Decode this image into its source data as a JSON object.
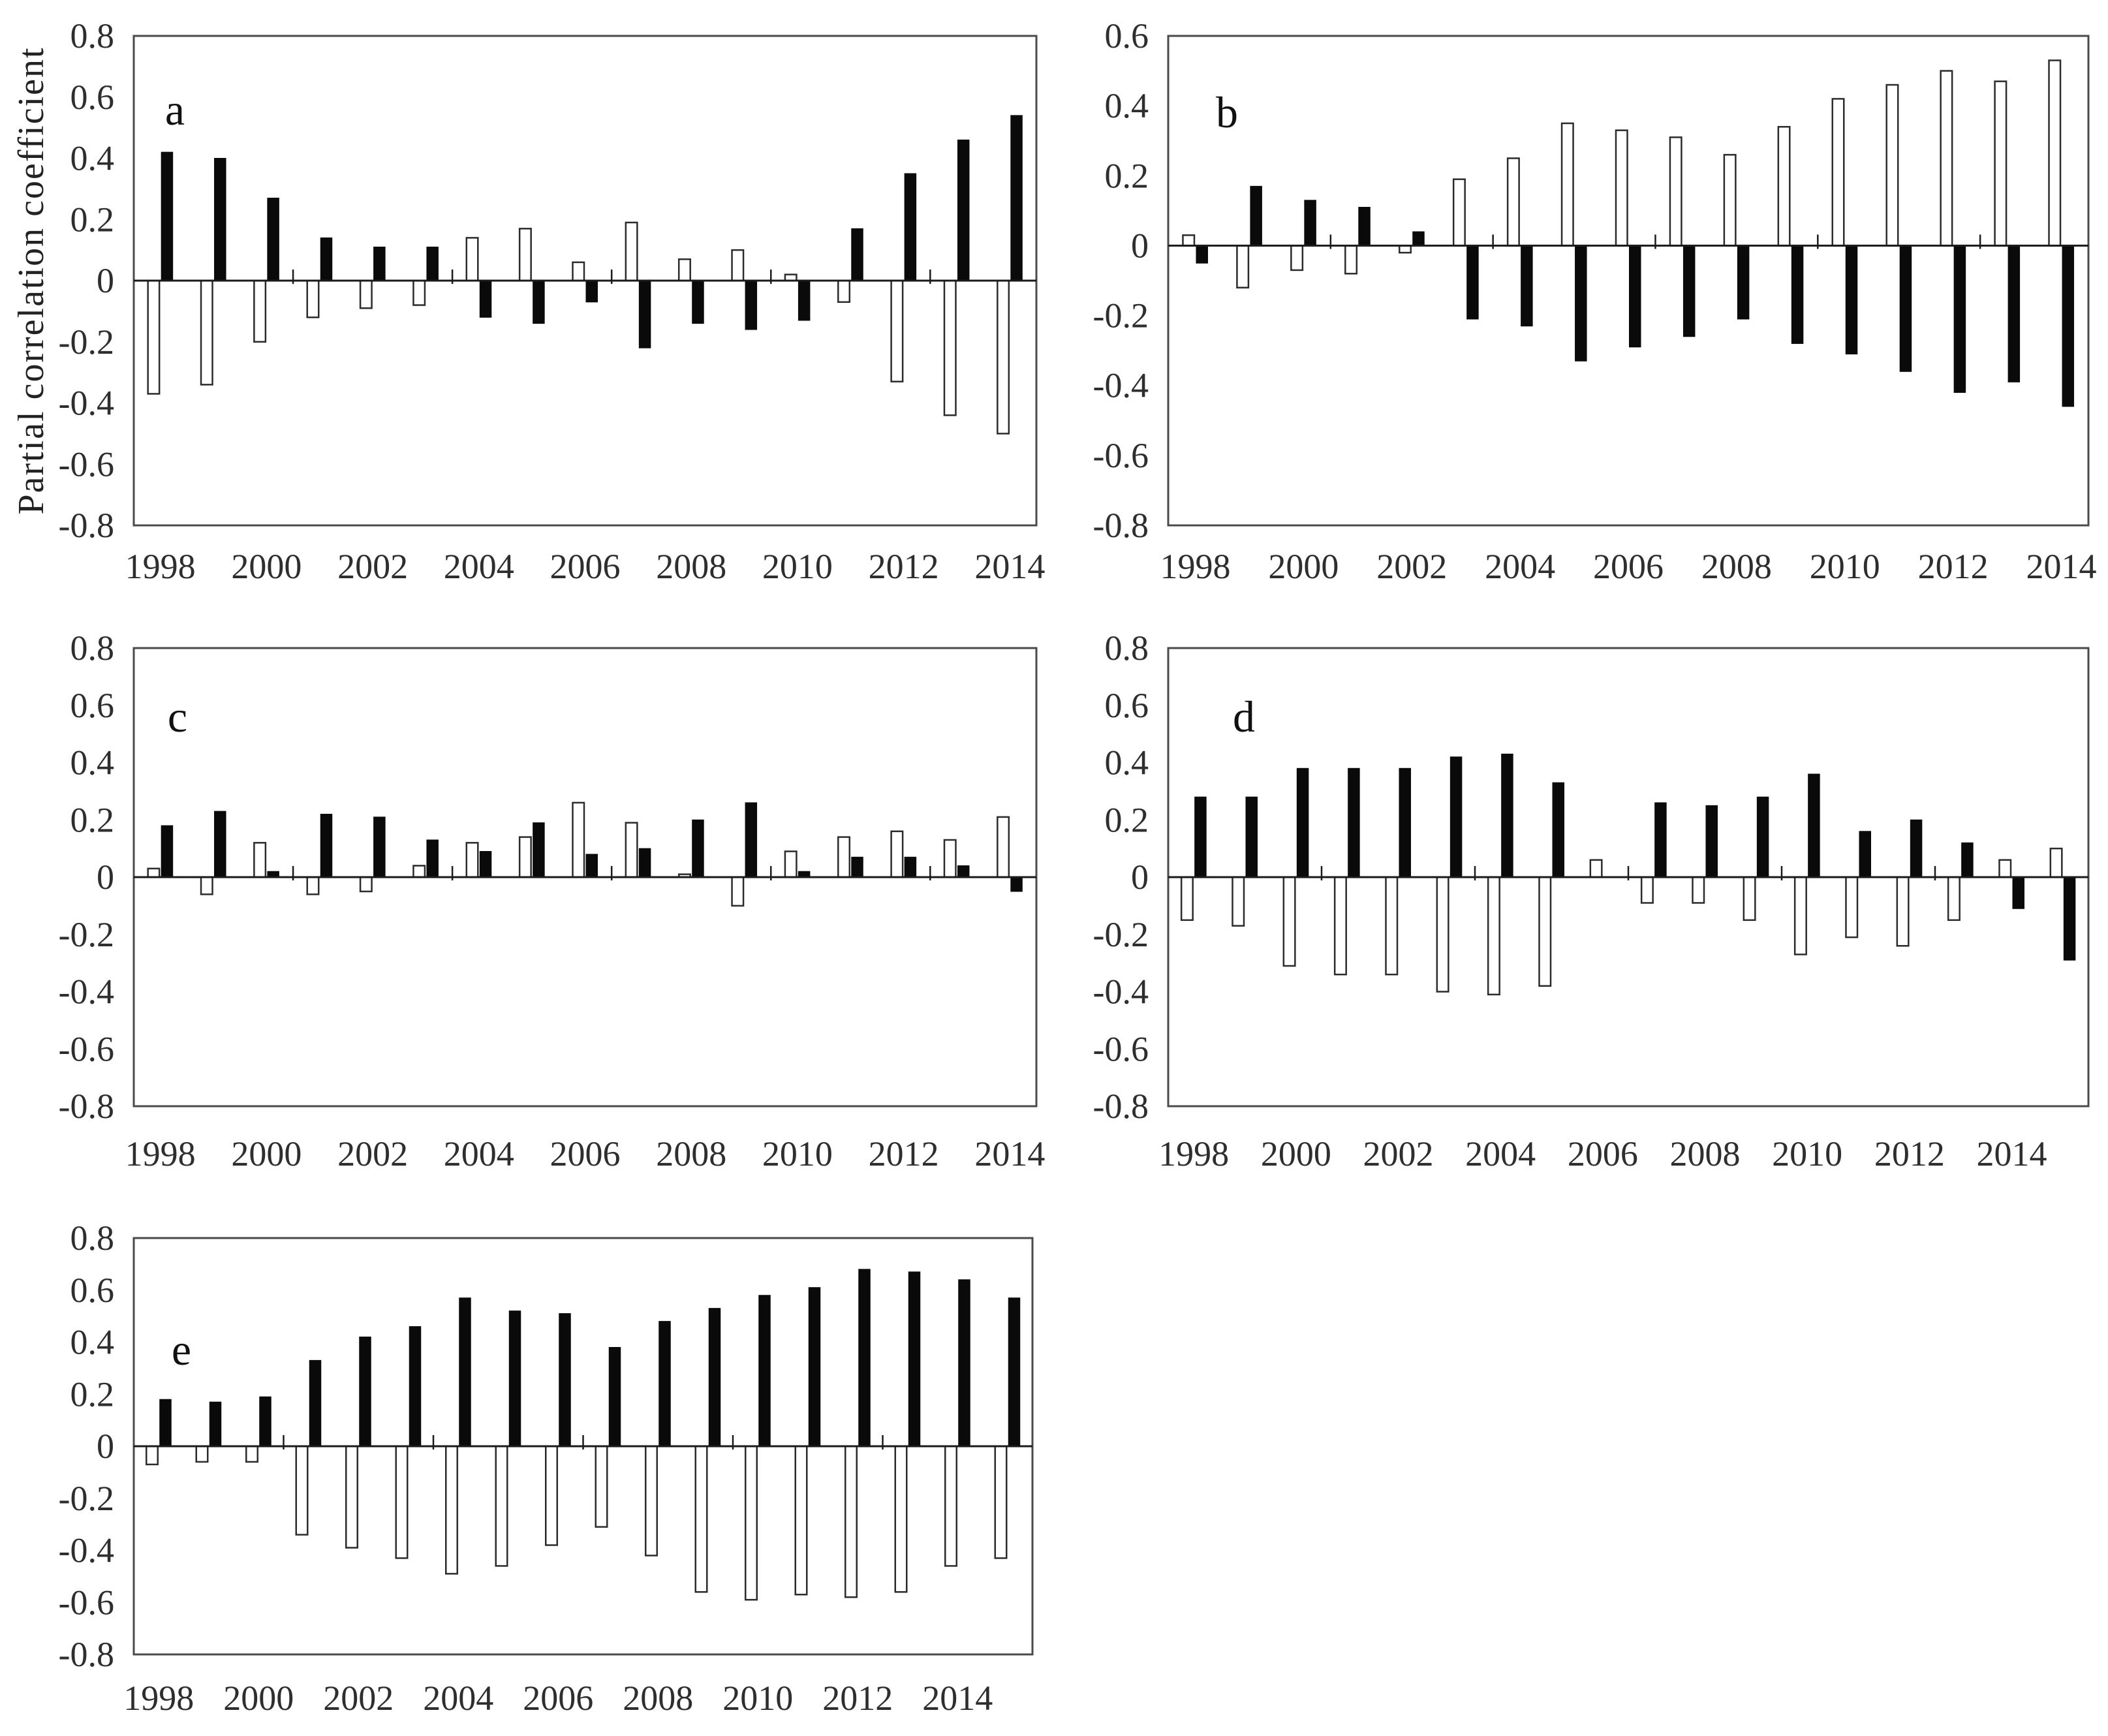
{
  "figure": {
    "y_axis_title": "Partial correlation coefficient",
    "colors": {
      "black_bar": "#0a0a0a",
      "white_bar_fill": "#ffffff",
      "white_bar_stroke": "#2b2b2b",
      "frame": "#4a4a4a",
      "zero_line": "#1a1a1a",
      "text": "#2e2e2e"
    }
  },
  "chart_data": [
    {
      "id": "a",
      "type": "bar",
      "panel_label": "a",
      "ylabel": "Partial correlation coefficient",
      "ylim": [
        -0.8,
        0.8
      ],
      "yticks": [
        0.8,
        0.6,
        0.4,
        0.2,
        0,
        -0.2,
        -0.4,
        -0.6,
        -0.8
      ],
      "xtick_labels": [
        "1998",
        "2000",
        "2002",
        "2004",
        "2006",
        "2008",
        "2010",
        "2012",
        "2014"
      ],
      "years": [
        1998,
        1999,
        2000,
        2001,
        2002,
        2003,
        2004,
        2005,
        2006,
        2007,
        2008,
        2009,
        2010,
        2011,
        2012,
        2013,
        2014
      ],
      "series": [
        {
          "name": "white",
          "values": [
            -0.37,
            -0.34,
            -0.2,
            -0.12,
            -0.09,
            -0.08,
            0.14,
            0.17,
            0.06,
            0.19,
            0.07,
            0.1,
            0.02,
            -0.07,
            -0.33,
            -0.44,
            -0.5
          ]
        },
        {
          "name": "black",
          "values": [
            0.42,
            0.4,
            0.27,
            0.14,
            0.11,
            0.11,
            -0.12,
            -0.14,
            -0.07,
            -0.22,
            -0.14,
            -0.16,
            -0.13,
            0.17,
            0.35,
            0.46,
            0.54
          ]
        }
      ]
    },
    {
      "id": "b",
      "type": "bar",
      "panel_label": "b",
      "ylabel": "",
      "ylim": [
        -0.8,
        0.6
      ],
      "yticks": [
        0.6,
        0.4,
        0.2,
        0,
        -0.2,
        -0.4,
        -0.6,
        -0.8
      ],
      "xtick_labels": [
        "1998",
        "2000",
        "2002",
        "2004",
        "2006",
        "2008",
        "2010",
        "2012",
        "2014"
      ],
      "years": [
        1998,
        1999,
        2000,
        2001,
        2002,
        2003,
        2004,
        2005,
        2006,
        2007,
        2008,
        2009,
        2010,
        2011,
        2012,
        2013,
        2014
      ],
      "series": [
        {
          "name": "white",
          "values": [
            0.03,
            -0.12,
            -0.07,
            -0.08,
            -0.02,
            0.19,
            0.25,
            0.35,
            0.33,
            0.31,
            0.26,
            0.34,
            0.42,
            0.46,
            0.5,
            0.47,
            0.53
          ]
        },
        {
          "name": "black",
          "values": [
            -0.05,
            0.17,
            0.13,
            0.11,
            0.04,
            -0.21,
            -0.23,
            -0.33,
            -0.29,
            -0.26,
            -0.21,
            -0.28,
            -0.31,
            -0.36,
            -0.42,
            -0.39,
            -0.46
          ]
        }
      ]
    },
    {
      "id": "c",
      "type": "bar",
      "panel_label": "c",
      "ylabel": "",
      "ylim": [
        -0.8,
        0.8
      ],
      "yticks": [
        0.8,
        0.6,
        0.4,
        0.2,
        0,
        -0.2,
        -0.4,
        -0.6,
        -0.8
      ],
      "xtick_labels": [
        "1998",
        "2000",
        "2002",
        "2004",
        "2006",
        "2008",
        "2010",
        "2012",
        "2014"
      ],
      "years": [
        1998,
        1999,
        2000,
        2001,
        2002,
        2003,
        2004,
        2005,
        2006,
        2007,
        2008,
        2009,
        2010,
        2011,
        2012,
        2013,
        2014
      ],
      "series": [
        {
          "name": "white",
          "values": [
            0.03,
            -0.06,
            0.12,
            -0.06,
            -0.05,
            0.04,
            0.12,
            0.14,
            0.26,
            0.19,
            0.01,
            -0.1,
            0.09,
            0.14,
            0.16,
            0.13,
            0.21
          ]
        },
        {
          "name": "black",
          "values": [
            0.18,
            0.23,
            0.02,
            0.22,
            0.21,
            0.13,
            0.09,
            0.19,
            0.08,
            0.1,
            0.2,
            0.26,
            0.02,
            0.07,
            0.07,
            0.04,
            -0.05
          ]
        }
      ]
    },
    {
      "id": "d",
      "type": "bar",
      "panel_label": "d",
      "ylabel": "",
      "ylim": [
        -0.8,
        0.8
      ],
      "yticks": [
        0.8,
        0.6,
        0.4,
        0.2,
        0,
        -0.2,
        -0.4,
        -0.6,
        -0.8
      ],
      "xtick_labels": [
        "1998",
        "2000",
        "2002",
        "2004",
        "2006",
        "2008",
        "2010",
        "2012",
        "2014"
      ],
      "years": [
        1998,
        1999,
        2000,
        2001,
        2002,
        2003,
        2004,
        2005,
        2006,
        2007,
        2008,
        2009,
        2010,
        2011,
        2012,
        2013,
        2014,
        2015
      ],
      "series": [
        {
          "name": "white",
          "values": [
            -0.15,
            -0.17,
            -0.31,
            -0.34,
            -0.34,
            -0.4,
            -0.41,
            -0.38,
            0.06,
            -0.09,
            -0.09,
            -0.15,
            -0.27,
            -0.21,
            -0.24,
            -0.15,
            0.06,
            0.1
          ]
        },
        {
          "name": "black",
          "values": [
            0.28,
            0.28,
            0.38,
            0.38,
            0.38,
            0.42,
            0.43,
            0.33,
            0,
            0.26,
            0.25,
            0.28,
            0.36,
            0.16,
            0.2,
            0.12,
            -0.11,
            -0.29
          ]
        }
      ]
    },
    {
      "id": "e",
      "type": "bar",
      "panel_label": "e",
      "ylabel": "",
      "ylim": [
        -0.8,
        0.8
      ],
      "yticks": [
        0.8,
        0.6,
        0.4,
        0.2,
        0,
        -0.2,
        -0.4,
        -0.6,
        -0.8
      ],
      "xtick_labels": [
        "1998",
        "2000",
        "2002",
        "2004",
        "2006",
        "2008",
        "2010",
        "2012",
        "2014"
      ],
      "years": [
        1998,
        1999,
        2000,
        2001,
        2002,
        2003,
        2004,
        2005,
        2006,
        2007,
        2008,
        2009,
        2010,
        2011,
        2012,
        2013,
        2014,
        2015
      ],
      "series": [
        {
          "name": "white",
          "values": [
            -0.07,
            -0.06,
            -0.06,
            -0.34,
            -0.39,
            -0.43,
            -0.49,
            -0.46,
            -0.38,
            -0.31,
            -0.42,
            -0.56,
            -0.59,
            -0.57,
            -0.58,
            -0.56,
            -0.46,
            -0.43
          ]
        },
        {
          "name": "black",
          "values": [
            0.18,
            0.17,
            0.19,
            0.33,
            0.42,
            0.46,
            0.57,
            0.52,
            0.51,
            0.38,
            0.48,
            0.53,
            0.58,
            0.61,
            0.68,
            0.67,
            0.64,
            0.57
          ]
        }
      ]
    }
  ]
}
